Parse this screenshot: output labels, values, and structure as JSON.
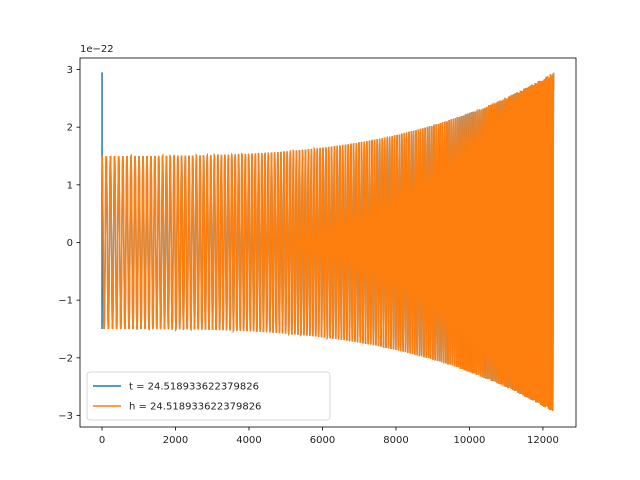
{
  "chart_data": {
    "type": "line",
    "title": "",
    "xlabel": "",
    "ylabel": "",
    "y_offset_label": "1e−22",
    "xlim": [
      -600,
      12900
    ],
    "ylim": [
      -3.2,
      3.2
    ],
    "x_ticks": [
      0,
      2000,
      4000,
      6000,
      8000,
      10000,
      12000
    ],
    "x_tick_labels": [
      "0",
      "2000",
      "4000",
      "6000",
      "8000",
      "10000",
      "12000"
    ],
    "y_ticks": [
      -3,
      -2,
      -1,
      0,
      1,
      2,
      3
    ],
    "y_tick_labels": [
      "−3",
      "−2",
      "−1",
      "0",
      "1",
      "2",
      "3"
    ],
    "grid": false,
    "legend_position": "lower-left",
    "series": [
      {
        "name": "t = 24.518933622379826",
        "color": "#1f77b4",
        "x_range": [
          0,
          12290
        ],
        "initial_spike": 2.95,
        "start_amplitude": 1.5,
        "end_amplitude": 2.95,
        "start_cycle_length": 115,
        "end_cycle_length": 40
      },
      {
        "name": "h = 24.518933622379826",
        "color": "#ff7f0e",
        "x_range": [
          0,
          12290
        ],
        "start_amplitude": 1.5,
        "end_amplitude": 2.95,
        "start_cycle_length": 115,
        "end_cycle_length": 40
      }
    ]
  }
}
